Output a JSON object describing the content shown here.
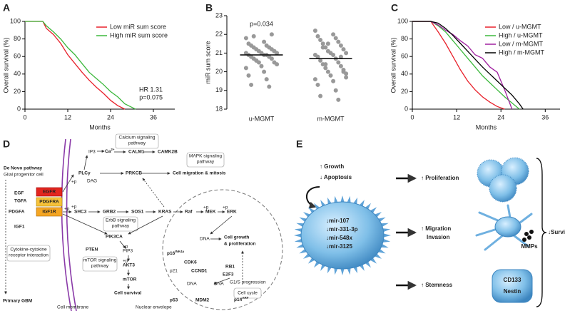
{
  "chart_data": [
    {
      "type": "line",
      "panel_label": "A",
      "x_label": "Months",
      "y_label": "Overall survival (%)",
      "xlim": [
        0,
        42
      ],
      "ylim": [
        0,
        100
      ],
      "xticks": [
        0,
        12,
        24,
        36
      ],
      "yticks": [
        0,
        20,
        40,
        60,
        80,
        100
      ],
      "legend": "upper right",
      "annotations": [
        "HR 1.31",
        "p=0.075"
      ],
      "series": [
        {
          "name": "Low miR sum score",
          "color": "#e8202a",
          "x": [
            0,
            5,
            6,
            8,
            10,
            12,
            14,
            16,
            18,
            20,
            22,
            24,
            26,
            28
          ],
          "values": [
            100,
            100,
            92,
            85,
            75,
            62,
            52,
            42,
            33,
            25,
            18,
            10,
            4,
            0
          ]
        },
        {
          "name": "High miR sum score",
          "color": "#3cb83c",
          "x": [
            0,
            5,
            6,
            8,
            10,
            12,
            14,
            16,
            18,
            20,
            22,
            24,
            26,
            28,
            30,
            31
          ],
          "values": [
            100,
            100,
            95,
            88,
            80,
            70,
            62,
            52,
            42,
            35,
            28,
            20,
            14,
            6,
            2,
            0
          ]
        }
      ]
    },
    {
      "type": "strip",
      "panel_label": "B",
      "y_label": "miR sum score",
      "categories": [
        "u-MGMT",
        "m-MGMT"
      ],
      "ylim": [
        18,
        23
      ],
      "yticks": [
        18,
        19,
        20,
        21,
        22,
        23
      ],
      "annotations": [
        "p=0.034"
      ],
      "color": "#999999",
      "values": [
        [
          21.8,
          21.6,
          21.5,
          21.4,
          21.4,
          21.3,
          21.3,
          21.2,
          21.2,
          21.1,
          21.1,
          21.0,
          21.0,
          21.0,
          20.9,
          20.9,
          20.9,
          20.8,
          20.8,
          20.7,
          20.7,
          20.6,
          20.5,
          20.5,
          20.4,
          20.3,
          20.2,
          20.0,
          19.8,
          19.6,
          19.3,
          19.2,
          21.9,
          22.0,
          20.6,
          21.1
        ],
        [
          22.2,
          22.0,
          21.9,
          21.8,
          21.7,
          21.6,
          21.5,
          21.4,
          21.3,
          21.2,
          21.1,
          21.0,
          21.0,
          20.9,
          20.9,
          20.8,
          20.7,
          20.6,
          20.5,
          20.4,
          20.3,
          20.2,
          20.1,
          20.0,
          19.9,
          19.8,
          19.6,
          19.5,
          19.3,
          19.0,
          18.7,
          18.5,
          21.3,
          20.8,
          20.4,
          20.0,
          21.5,
          19.7
        ]
      ],
      "means": [
        20.9,
        20.7
      ]
    },
    {
      "type": "line",
      "panel_label": "C",
      "x_label": "Months",
      "y_label": "Overall survival (%)",
      "xlim": [
        0,
        40
      ],
      "ylim": [
        0,
        100
      ],
      "xticks": [
        0,
        12,
        24,
        36
      ],
      "yticks": [
        0,
        20,
        40,
        60,
        80,
        100
      ],
      "legend": "upper right",
      "annotations": [],
      "series": [
        {
          "name": "Low / u-MGMT",
          "color": "#e8202a",
          "x": [
            0,
            5,
            7,
            9,
            11,
            13,
            15,
            17,
            19,
            21,
            23,
            25
          ],
          "values": [
            100,
            100,
            88,
            75,
            60,
            45,
            32,
            22,
            14,
            8,
            3,
            0
          ]
        },
        {
          "name": "High / u-MGMT",
          "color": "#3cb83c",
          "x": [
            0,
            5,
            7,
            9,
            11,
            13,
            15,
            17,
            19,
            21,
            23,
            25,
            27,
            29
          ],
          "values": [
            100,
            100,
            95,
            88,
            78,
            68,
            58,
            48,
            38,
            30,
            22,
            14,
            7,
            0
          ]
        },
        {
          "name": "Low / m-MGMT",
          "color": "#a020a0",
          "x": [
            0,
            5,
            7,
            9,
            11,
            13,
            15,
            17,
            19,
            21,
            23,
            25,
            27
          ],
          "values": [
            100,
            100,
            96,
            90,
            85,
            78,
            72,
            62,
            58,
            48,
            42,
            22,
            0
          ]
        },
        {
          "name": "High / m-MGMT",
          "color": "#000000",
          "x": [
            0,
            5,
            7,
            9,
            11,
            13,
            15,
            17,
            19,
            21,
            23,
            25,
            27,
            29,
            30
          ],
          "values": [
            100,
            100,
            98,
            92,
            84,
            75,
            66,
            57,
            48,
            40,
            32,
            24,
            16,
            6,
            0
          ]
        }
      ]
    }
  ],
  "panel_d": {
    "panel_label": "D",
    "de_novo": "De Novo pathway",
    "glial": "Glial progenitor cell",
    "egf": "EGF",
    "tgfa": "TGFA",
    "pdgfa": "PDGFA",
    "igf1": "IGF1",
    "egfr": "EGFR",
    "pdgfra": "PDGFRA",
    "igf1r": "IGF1R",
    "plcg": "PLCγ",
    "ip3": "IP3",
    "ca": {
      "base": "Ca",
      "sup": "2+"
    },
    "calm1": "CALM1",
    "camk2b": "CAMK2B",
    "dag": "DAG",
    "prkcb": "PRKCB",
    "migration": "Cell migration & mitosis",
    "shc3": "SHC3",
    "grb2": "GRB2",
    "sos1": "SOS1",
    "kras": "KRAS",
    "raf": "Raf",
    "mek": "MEK",
    "erk": "ERK",
    "pik3ca": "PIK3CA",
    "pten": "PTEN",
    "pip3": "PIP3",
    "akt3": "AKT3",
    "mtor": "mTOR",
    "survival": "Cell survival",
    "calcium_path": [
      "Calcium signaling",
      "pathway"
    ],
    "mapk_path": [
      "MAPK signaling",
      "pathway"
    ],
    "erbb_path": [
      "ErbB signaling",
      "pathway"
    ],
    "mtor_path": [
      "mTOR signaling",
      "pathway"
    ],
    "cytokine_path": [
      "Cytokine-cytokine",
      "receptor interaction"
    ],
    "primary": "Primary GBM",
    "membrane": "Cell membrane",
    "nuclear": "Nuclear envelope",
    "dna": "DNA",
    "growth": [
      "Cell growth",
      "& proliferation"
    ],
    "p16": {
      "base": "p16",
      "sup": "INK4a"
    },
    "cdk6": "CDK6",
    "ccnd1": "CCND1",
    "p21": "p21",
    "rb1": "RB1",
    "e2f3": "E2F3",
    "g1s": "G1/S progression",
    "p53": "p53",
    "mdm2": "MDM2",
    "p14": {
      "base": "p14",
      "sup": "ARF"
    },
    "cell_cycle": "Cell cycle",
    "phos": "+p"
  },
  "panel_e": {
    "panel_label": "E",
    "growth": "↑ Growth",
    "apoptosis": "↓ Apoptosis",
    "mirs": [
      "↓mir-107",
      "↓mir-331-3p",
      "↓mir-548x",
      "↓mir-3125"
    ],
    "proliferation": "↑ Proliferation",
    "migration": "↑ Migration",
    "invasion": "Invasion",
    "stemness": "↑ Stemness",
    "mmps": "MMPs",
    "cd133": "CD133",
    "nestin": "Nestin",
    "survival": "↓Survival"
  }
}
